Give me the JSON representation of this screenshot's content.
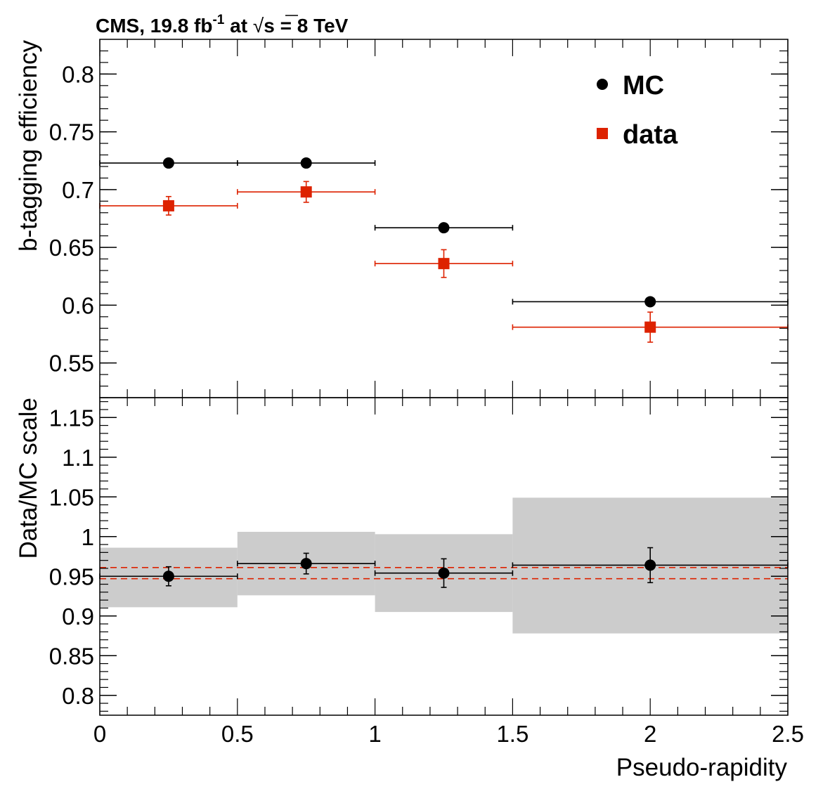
{
  "header": {
    "experiment": "CMS, 19.8 fb",
    "lumi_exp": "-1",
    "at": " at ",
    "sqrt_symbol": "√",
    "energy": "s = 8 TeV"
  },
  "chart_data": [
    {
      "type": "scatter",
      "panel": "top",
      "ylabel": "b-tagging efficiency",
      "xlabel": "",
      "xlim": [
        0,
        2.5
      ],
      "ylim": [
        0.52,
        0.83
      ],
      "yticks": [
        0.55,
        0.6,
        0.65,
        0.7,
        0.75,
        0.8
      ],
      "ytick_labels": [
        "0.55",
        "0.6",
        "0.65",
        "0.7",
        "0.75",
        "0.8"
      ],
      "legend_position": "top-right",
      "series": [
        {
          "name": "MC",
          "color": "#000000",
          "marker": "circle",
          "points": [
            {
              "x": 0.25,
              "xlo": 0.0,
              "xhi": 0.5,
              "y": 0.723,
              "yerr": 0.0
            },
            {
              "x": 0.75,
              "xlo": 0.5,
              "xhi": 1.0,
              "y": 0.723,
              "yerr": 0.0
            },
            {
              "x": 1.25,
              "xlo": 1.0,
              "xhi": 1.5,
              "y": 0.667,
              "yerr": 0.0
            },
            {
              "x": 2.0,
              "xlo": 1.5,
              "xhi": 2.5,
              "y": 0.603,
              "yerr": 0.0
            }
          ]
        },
        {
          "name": "data",
          "color": "#dd2200",
          "marker": "square",
          "points": [
            {
              "x": 0.25,
              "xlo": 0.0,
              "xhi": 0.5,
              "y": 0.686,
              "yerr": 0.008
            },
            {
              "x": 0.75,
              "xlo": 0.5,
              "xhi": 1.0,
              "y": 0.698,
              "yerr": 0.009
            },
            {
              "x": 1.25,
              "xlo": 1.0,
              "xhi": 1.5,
              "y": 0.636,
              "yerr": 0.012
            },
            {
              "x": 2.0,
              "xlo": 1.5,
              "xhi": 2.5,
              "y": 0.581,
              "yerr": 0.013
            }
          ]
        }
      ]
    },
    {
      "type": "scatter",
      "panel": "bottom",
      "ylabel": "Data/MC scale",
      "xlabel": "Pseudo-rapidity",
      "xlim": [
        0,
        2.5
      ],
      "ylim": [
        0.775,
        1.175
      ],
      "yticks": [
        0.8,
        0.85,
        0.9,
        0.95,
        1.0,
        1.05,
        1.1,
        1.15
      ],
      "ytick_labels": [
        "0.8",
        "0.85",
        "0.9",
        "0.95",
        "1",
        "1.05",
        "1.1",
        "1.15"
      ],
      "xticks": [
        0,
        0.5,
        1,
        1.5,
        2,
        2.5
      ],
      "xtick_labels": [
        "0",
        "0.5",
        "1",
        "1.5",
        "2",
        "2.5"
      ],
      "band_color": "#cccccc",
      "bands": [
        {
          "xlo": 0.0,
          "xhi": 0.5,
          "ylo": 0.911,
          "yhi": 0.986
        },
        {
          "xlo": 0.5,
          "xhi": 1.0,
          "ylo": 0.926,
          "yhi": 1.006
        },
        {
          "xlo": 1.0,
          "xhi": 1.5,
          "ylo": 0.905,
          "yhi": 1.003
        },
        {
          "xlo": 1.5,
          "xhi": 2.5,
          "ylo": 0.878,
          "yhi": 1.049
        }
      ],
      "ref_lines": {
        "color": "#dd2200",
        "style": "dashed",
        "values": [
          0.947,
          0.961
        ]
      },
      "series": [
        {
          "color": "#000000",
          "marker": "circle",
          "points": [
            {
              "x": 0.25,
              "xlo": 0.0,
              "xhi": 0.5,
              "y": 0.95,
              "yerr": 0.012
            },
            {
              "x": 0.75,
              "xlo": 0.5,
              "xhi": 1.0,
              "y": 0.966,
              "yerr": 0.013
            },
            {
              "x": 1.25,
              "xlo": 1.0,
              "xhi": 1.5,
              "y": 0.954,
              "yerr": 0.018
            },
            {
              "x": 2.0,
              "xlo": 1.5,
              "xhi": 2.5,
              "y": 0.964,
              "yerr": 0.022
            }
          ]
        }
      ]
    }
  ]
}
